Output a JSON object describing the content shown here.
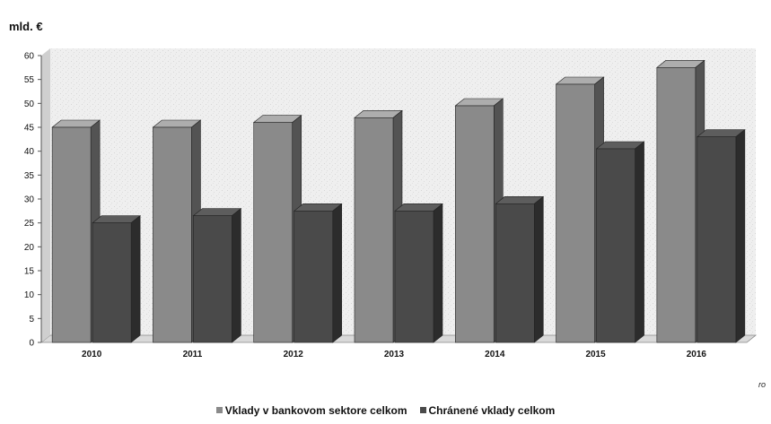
{
  "chart_data": {
    "type": "bar",
    "unit_label": "mld. €",
    "x_unit_label": "ro",
    "categories": [
      "2010",
      "2011",
      "2012",
      "2013",
      "2014",
      "2015",
      "2016"
    ],
    "series": [
      {
        "name": "Vklady v bankovom sektore celkom",
        "values": [
          45,
          45,
          46,
          47,
          49.5,
          54,
          57.5
        ],
        "color": "#8a8a8a"
      },
      {
        "name": "Chránené vklady celkom",
        "values": [
          25,
          26.5,
          27.5,
          27.5,
          29,
          40.5,
          43
        ],
        "color": "#4a4a4a"
      }
    ],
    "ylim": [
      0,
      60
    ],
    "yticks": [
      0,
      5,
      10,
      15,
      20,
      25,
      30,
      35,
      40,
      45,
      50,
      55,
      60
    ],
    "grid": false,
    "legend_position": "bottom-center"
  }
}
